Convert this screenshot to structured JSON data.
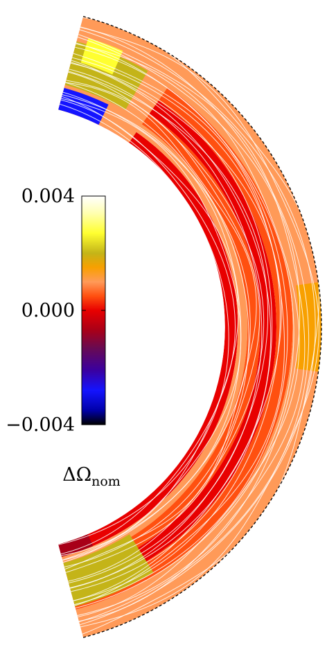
{
  "chart_data": {
    "type": "heatmap",
    "projection": "meridional-shell",
    "shell": {
      "inner_radius_fraction": 0.7,
      "latitude_range_deg": [
        -75,
        75
      ]
    },
    "colorbar": {
      "title": "ΔΩ",
      "title_subscript": "nom",
      "range": [
        -0.004,
        0.004
      ],
      "ticks": [
        {
          "value": 0.004,
          "label": "0.004"
        },
        {
          "value": 0.0,
          "label": "0.000"
        },
        {
          "value": -0.004,
          "label": "−0.004"
        }
      ],
      "colormap": [
        {
          "value": -0.004,
          "color": "#000000"
        },
        {
          "value": -0.0035,
          "color": "#0000a8"
        },
        {
          "value": -0.0028,
          "color": "#1414ff"
        },
        {
          "value": -0.0021,
          "color": "#3a00a0"
        },
        {
          "value": -0.0013,
          "color": "#6a0a50"
        },
        {
          "value": -0.0007,
          "color": "#a80018"
        },
        {
          "value": 0.0,
          "color": "#e80000"
        },
        {
          "value": 0.0005,
          "color": "#ff5010"
        },
        {
          "value": 0.001,
          "color": "#ff9a58"
        },
        {
          "value": 0.0015,
          "color": "#f8a000"
        },
        {
          "value": 0.002,
          "color": "#c4b418"
        },
        {
          "value": 0.0027,
          "color": "#ffff30"
        },
        {
          "value": 0.0034,
          "color": "#ffffb0"
        },
        {
          "value": 0.004,
          "color": "#ffffff"
        }
      ]
    },
    "bands": [
      {
        "r_range": [
          0.7,
          0.74
        ],
        "value": 0.0
      },
      {
        "r_range": [
          0.74,
          0.77
        ],
        "value": 0.001
      },
      {
        "r_range": [
          0.77,
          0.81
        ],
        "value": 0.0005
      },
      {
        "r_range": [
          0.81,
          0.86
        ],
        "value": 0.0
      },
      {
        "r_range": [
          0.86,
          0.91
        ],
        "value": 0.0005
      },
      {
        "r_range": [
          0.91,
          1.0
        ],
        "value": 0.001
      }
    ],
    "regions": [
      {
        "name": "north-high-latitude",
        "lat_range": [
          55,
          75
        ],
        "r_range": [
          0.7,
          1.0
        ],
        "value": 0.001
      },
      {
        "name": "north-midlatitude-olive",
        "lat_range": [
          60,
          75
        ],
        "r_range": [
          0.78,
          0.92
        ],
        "value": 0.002
      },
      {
        "name": "north-polar-cap-yellow",
        "lat_range": [
          66,
          73
        ],
        "r_range": [
          0.86,
          0.94
        ],
        "value": 0.0027
      },
      {
        "name": "north-polar-blue",
        "lat_range": [
          64,
          75
        ],
        "r_range": [
          0.7,
          0.77
        ],
        "value": -0.0028
      },
      {
        "name": "south-midlatitude-olive",
        "lat_range": [
          -75,
          -58
        ],
        "r_range": [
          0.76,
          0.9
        ],
        "value": 0.002
      },
      {
        "name": "south-polar-dark",
        "lat_range": [
          -75,
          -67
        ],
        "r_range": [
          0.7,
          0.74
        ],
        "value": -0.0007
      },
      {
        "name": "equatorial-orange",
        "lat_range": [
          -8,
          8
        ],
        "r_range": [
          0.93,
          1.0
        ],
        "value": 0.0015
      }
    ]
  }
}
